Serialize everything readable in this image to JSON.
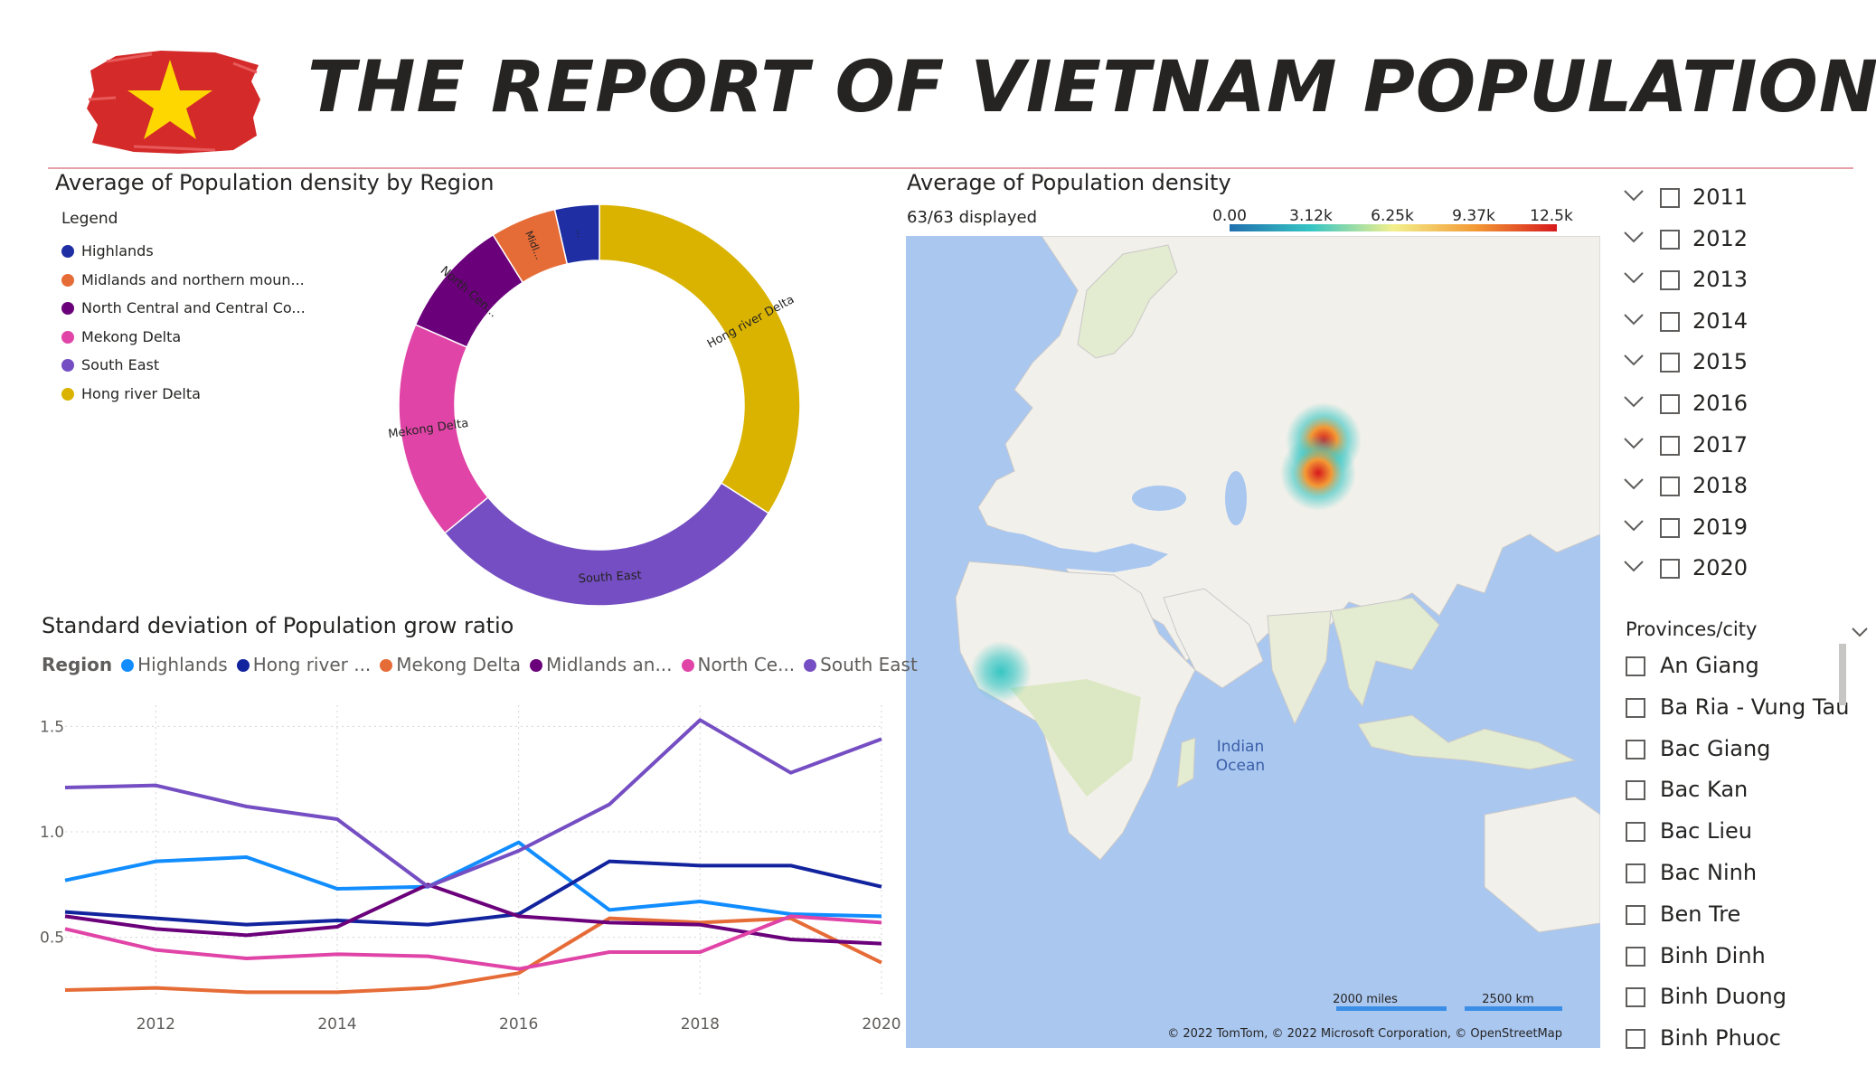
{
  "header": {
    "title": "THE REPORT OF VIETNAM POPULATION",
    "flag_colors": {
      "red": "#d42a2a",
      "star": "#ffd700"
    }
  },
  "donut_visual": {
    "title": "Average of Population density by Region",
    "legend_title": "Legend",
    "legend_items": [
      {
        "label": "Highlands",
        "color": "#1f2ea3"
      },
      {
        "label": "Midlands and northern moun...",
        "color": "#e66c37"
      },
      {
        "label": "North Central and Central Co...",
        "color": "#6b007b"
      },
      {
        "label": "Mekong Delta",
        "color": "#e044a7"
      },
      {
        "label": "South East",
        "color": "#744ec2"
      },
      {
        "label": "Hong river Delta",
        "color": "#d9b300"
      }
    ]
  },
  "map_visual": {
    "title": "Average of Population density",
    "displayed": "63/63 displayed",
    "scale_ticks": [
      "0.00",
      "3.12k",
      "6.25k",
      "9.37k",
      "12.5k"
    ],
    "ocean_label_1": "Indian",
    "ocean_label_2": "Ocean",
    "scale_miles": "2000 miles",
    "scale_km": "2500 km",
    "attribution": "© 2022 TomTom, © 2022 Microsoft Corporation, © OpenStreetMap"
  },
  "line_visual": {
    "title": "Standard deviation of Population grow ratio",
    "legend_label": "Region",
    "legend_items": [
      {
        "label": "Highlands",
        "color": "#118dff"
      },
      {
        "label": "Hong river ...",
        "color": "#12239e"
      },
      {
        "label": "Mekong Delta",
        "color": "#e66c37"
      },
      {
        "label": "Midlands an...",
        "color": "#6b007b"
      },
      {
        "label": "North Ce...",
        "color": "#e044a7"
      },
      {
        "label": "South East",
        "color": "#744ec2"
      }
    ]
  },
  "year_slicer": {
    "years": [
      "2011",
      "2012",
      "2013",
      "2014",
      "2015",
      "2016",
      "2017",
      "2018",
      "2019",
      "2020"
    ]
  },
  "province_slicer": {
    "title": "Provinces/city",
    "items": [
      "An Giang",
      "Ba Ria - Vung Tau",
      "Bac Giang",
      "Bac Kan",
      "Bac Lieu",
      "Bac Ninh",
      "Ben Tre",
      "Binh Dinh",
      "Binh Duong",
      "Binh Phuoc"
    ]
  },
  "chart_data": [
    {
      "type": "pie",
      "title": "Average of Population density by Region",
      "donut": true,
      "categories": [
        "Hong river Delta",
        "South East",
        "Mekong Delta",
        "North Central and Central Co...",
        "Midlands and northern moun...",
        "Highlands"
      ],
      "slice_labels": [
        "Hong river Delta",
        "South East",
        "Mekong Delta",
        "North Cen...",
        "Midl...",
        "..."
      ],
      "values": [
        31.4,
        27.6,
        16.2,
        8.8,
        4.9,
        3.3
      ],
      "colors": [
        "#d9b300",
        "#744ec2",
        "#e044a7",
        "#6b007b",
        "#e66c37",
        "#1f2ea3"
      ],
      "legend_position": "top-left"
    },
    {
      "type": "line",
      "title": "Standard deviation of Population grow ratio",
      "x": [
        2011,
        2012,
        2013,
        2014,
        2015,
        2016,
        2017,
        2018,
        2019,
        2020
      ],
      "x_ticks": [
        2012,
        2014,
        2016,
        2018,
        2020
      ],
      "y_ticks": [
        0.5,
        1.0,
        1.5
      ],
      "y_tick_labels": [
        "0.5",
        "1.0",
        "1.5"
      ],
      "xlim": [
        2011,
        2020
      ],
      "ylim": [
        0.22,
        1.6
      ],
      "grid": true,
      "legend_position": "top",
      "series": [
        {
          "name": "Highlands",
          "color": "#118dff",
          "values": [
            0.77,
            0.86,
            0.88,
            0.73,
            0.74,
            0.95,
            0.63,
            0.67,
            0.61,
            0.6
          ]
        },
        {
          "name": "Hong river ...",
          "color": "#12239e",
          "values": [
            0.62,
            0.59,
            0.56,
            0.58,
            0.56,
            0.61,
            0.86,
            0.84,
            0.84,
            0.74
          ]
        },
        {
          "name": "Mekong Delta",
          "color": "#e66c37",
          "values": [
            0.25,
            0.26,
            0.24,
            0.24,
            0.26,
            0.33,
            0.59,
            0.57,
            0.59,
            0.38
          ]
        },
        {
          "name": "Midlands an...",
          "color": "#6b007b",
          "values": [
            0.6,
            0.54,
            0.51,
            0.55,
            0.75,
            0.6,
            0.57,
            0.56,
            0.49,
            0.47
          ]
        },
        {
          "name": "North Ce...",
          "color": "#e044a7",
          "values": [
            0.54,
            0.44,
            0.4,
            0.42,
            0.41,
            0.35,
            0.43,
            0.43,
            0.6,
            0.57
          ]
        },
        {
          "name": "South East",
          "color": "#744ec2",
          "values": [
            1.21,
            1.22,
            1.12,
            1.06,
            0.74,
            0.91,
            1.13,
            1.53,
            1.28,
            1.44
          ]
        }
      ]
    }
  ]
}
